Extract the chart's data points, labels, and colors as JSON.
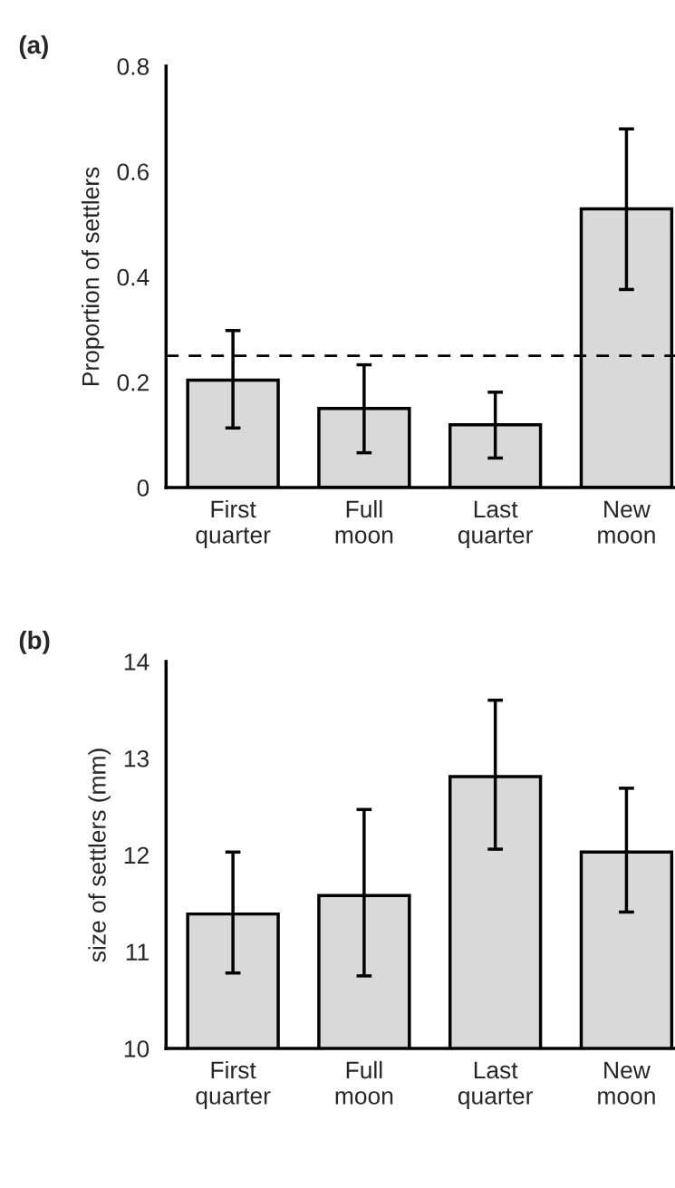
{
  "chart_data": [
    {
      "type": "bar",
      "title": "(a)",
      "ylabel": "Proportion of settlers",
      "categories": [
        "First\nquarter",
        "Full\nmoon",
        "Last\nquarter",
        "New\nmoon"
      ],
      "values": [
        0.204,
        0.15,
        0.119,
        0.529
      ],
      "errors": [
        [
          0.113,
          0.298
        ],
        [
          0.066,
          0.233
        ],
        [
          0.056,
          0.181
        ],
        [
          0.376,
          0.681
        ]
      ],
      "color": "#d9d9d9",
      "ylim": [
        0,
        0.8
      ],
      "yticks": [
        {
          "value": 0,
          "label": "0"
        },
        0.2,
        0.4,
        0.6,
        0.8
      ],
      "ref_lines": [
        {
          "axis": "y",
          "value": 0.25,
          "color": "#000000",
          "line_style": "dashed"
        }
      ],
      "grid": false
    },
    {
      "type": "bar",
      "title": "(b)",
      "ylabel": "size of settlers (mm)",
      "categories": [
        "First\nquarter",
        "Full\nmoon",
        "Last\nquarter",
        "New\nmoon"
      ],
      "values": [
        11.39,
        11.58,
        12.81,
        12.03
      ],
      "errors": [
        [
          10.78,
          12.03
        ],
        [
          10.75,
          12.47
        ],
        [
          12.06,
          13.6
        ],
        [
          11.41,
          12.69
        ]
      ],
      "color": "#d9d9d9",
      "ylim": [
        10,
        14
      ],
      "yticks": [
        10,
        11,
        12,
        13,
        14
      ],
      "grid": false
    }
  ]
}
